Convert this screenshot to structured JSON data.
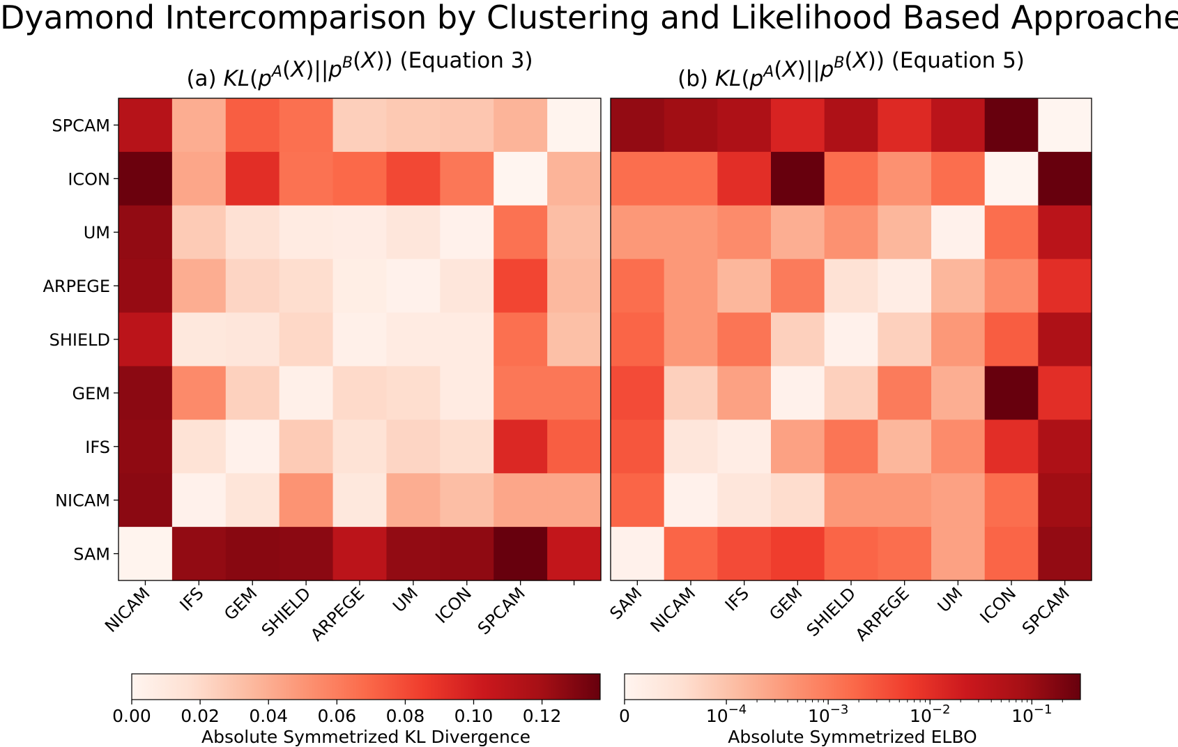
{
  "suptitle": "Dyamond Intercomparison by Clustering and Likelihood Based Approaches",
  "colors": {
    "low": "#fff5f0",
    "high": "#67000d",
    "frame": "#000000"
  },
  "chart_data": [
    {
      "type": "heatmap",
      "title_prefix": "(a) ",
      "title_math": "KL(p^A(X)||p^B(X))",
      "title_suffix": " (Equation 3)",
      "y_categories": [
        "SPCAM",
        "ICON",
        "UM",
        "ARPEGE",
        "SHIELD",
        "GEM",
        "IFS",
        "NICAM",
        "SAM"
      ],
      "x_categories": [
        "NICAM",
        "IFS",
        "GEM",
        "SHIELD",
        "ARPEGE",
        "UM",
        "ICON",
        "SPCAM",
        ""
      ],
      "values": [
        [
          0.112,
          0.04,
          0.073,
          0.066,
          0.025,
          0.028,
          0.029,
          0.037,
          0.001
        ],
        [
          0.136,
          0.043,
          0.092,
          0.065,
          0.069,
          0.081,
          0.063,
          0.0,
          0.037
        ],
        [
          0.125,
          0.027,
          0.016,
          0.008,
          0.007,
          0.012,
          0.003,
          0.065,
          0.033
        ],
        [
          0.124,
          0.04,
          0.022,
          0.018,
          0.006,
          0.003,
          0.012,
          0.082,
          0.035
        ],
        [
          0.11,
          0.011,
          0.012,
          0.021,
          0.004,
          0.008,
          0.008,
          0.066,
          0.032
        ],
        [
          0.127,
          0.055,
          0.024,
          0.004,
          0.02,
          0.018,
          0.008,
          0.063,
          0.063
        ],
        [
          0.126,
          0.015,
          0.003,
          0.027,
          0.015,
          0.022,
          0.018,
          0.095,
          0.073
        ],
        [
          0.127,
          0.003,
          0.013,
          0.051,
          0.011,
          0.04,
          0.033,
          0.043,
          0.043
        ],
        [
          0.001,
          0.125,
          0.128,
          0.127,
          0.11,
          0.125,
          0.126,
          0.137,
          0.107
        ]
      ],
      "scale": "linear",
      "vmin": 0,
      "vmax": 0.137,
      "colorbar_ticks": [
        0.0,
        0.02,
        0.04,
        0.06,
        0.08,
        0.1,
        0.12
      ],
      "colorbar_label": "Absolute Symmetrized KL Divergence"
    },
    {
      "type": "heatmap",
      "title_prefix": "(b) ",
      "title_math": "KL(p^A(X)||p^B(X))",
      "title_suffix": " (Equation 5)",
      "y_categories": [
        "SPCAM",
        "ICON",
        "UM",
        "ARPEGE",
        "SHIELD",
        "GEM",
        "IFS",
        "NICAM",
        "SAM"
      ],
      "x_categories": [
        "SAM",
        "NICAM",
        "IFS",
        "GEM",
        "SHIELD",
        "ARPEGE",
        "UM",
        "ICON",
        "SPCAM"
      ],
      "values": [
        [
          0.12,
          0.09,
          0.06,
          0.015,
          0.06,
          0.012,
          0.04,
          0.3,
          0.0
        ],
        [
          0.0015,
          0.0015,
          0.01,
          0.3,
          0.0015,
          0.0005,
          0.0015,
          0.0,
          0.3
        ],
        [
          0.0004,
          0.0004,
          0.0006,
          0.0002,
          0.0005,
          0.00015,
          1e-05,
          0.0015,
          0.04
        ],
        [
          0.0015,
          0.0004,
          0.00015,
          0.001,
          5e-05,
          2e-05,
          0.00015,
          0.0006,
          0.01
        ],
        [
          0.002,
          0.0004,
          0.0012,
          8e-05,
          1e-05,
          8e-05,
          0.0004,
          0.0025,
          0.06
        ],
        [
          0.004,
          8e-05,
          0.0003,
          1e-05,
          8e-05,
          0.001,
          0.0002,
          0.3,
          0.01
        ],
        [
          0.003,
          4e-05,
          2e-05,
          0.0003,
          0.0012,
          0.00015,
          0.0006,
          0.01,
          0.06
        ],
        [
          0.002,
          1e-05,
          4e-05,
          6e-05,
          0.0004,
          0.0004,
          0.0003,
          0.0015,
          0.09
        ],
        [
          1e-05,
          0.002,
          0.004,
          0.006,
          0.002,
          0.0015,
          0.0003,
          0.002,
          0.12
        ]
      ],
      "scale": "symlog",
      "linthresh": 0.0001,
      "vmin": 0,
      "vmax": 0.3,
      "colorbar_ticks": [
        {
          "value": 0,
          "base": "0",
          "exp": ""
        },
        {
          "value": 0.0001,
          "base": "10",
          "exp": "−4"
        },
        {
          "value": 0.001,
          "base": "10",
          "exp": "−3"
        },
        {
          "value": 0.01,
          "base": "10",
          "exp": "−2"
        },
        {
          "value": 0.1,
          "base": "10",
          "exp": "−1"
        }
      ],
      "colorbar_label": "Absolute Symmetrized ELBO"
    }
  ]
}
